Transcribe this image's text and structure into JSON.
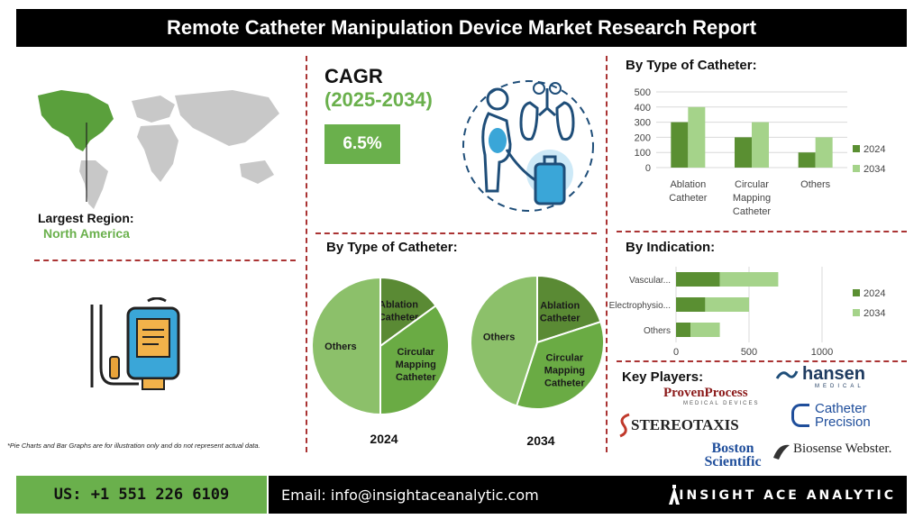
{
  "header": {
    "title": "Remote Catheter Manipulation Device Market Research Report"
  },
  "region": {
    "label": "Largest Region:",
    "value": "North America"
  },
  "cagr": {
    "label": "CAGR",
    "period": "(2025-2034)",
    "value": "6.5%"
  },
  "disclaimer": "*Pie Charts and Bar Graphs are for illustration only and do not represent actual data.",
  "sections": {
    "bar_title": "By Type of Catheter:",
    "pie_title": "By Type of Catheter:",
    "indication_title": "By Indication:",
    "players_title": "Key Players:"
  },
  "colors": {
    "series_2024": "#5a8f32",
    "series_2034": "#a5d38a",
    "pie_dark": "#5a8a34",
    "pie_mid": "#6aab44",
    "pie_light": "#8cc06a",
    "cagr_box": "#6ab04c"
  },
  "chart_data": [
    {
      "type": "bar",
      "title": "By Type of Catheter:",
      "categories": [
        "Ablation Catheter",
        "Circular Mapping Catheter",
        "Others"
      ],
      "category_lines": [
        [
          "Ablation",
          "Catheter"
        ],
        [
          "Circular",
          "Mapping",
          "Catheter"
        ],
        [
          "Others"
        ]
      ],
      "series": [
        {
          "name": "2024",
          "values": [
            300,
            200,
            100
          ]
        },
        {
          "name": "2034",
          "values": [
            400,
            300,
            200
          ]
        }
      ],
      "ylim": [
        0,
        500
      ],
      "yticks": [
        "0",
        "100",
        "200",
        "300",
        "400",
        "500"
      ],
      "legend": "right",
      "grid": true
    },
    {
      "type": "pie",
      "title": "By Type of Catheter:",
      "label": "2024",
      "slices": [
        {
          "name": "Ablation Catheter",
          "lines": [
            "Ablation",
            "Catheter"
          ],
          "value": 15
        },
        {
          "name": "Circular Mapping Catheter",
          "lines": [
            "Circular",
            "Mapping",
            "Catheter"
          ],
          "value": 35
        },
        {
          "name": "Others",
          "lines": [
            "Others"
          ],
          "value": 50
        }
      ]
    },
    {
      "type": "pie",
      "title": "By Type of Catheter:",
      "label": "2034",
      "slices": [
        {
          "name": "Ablation Catheter",
          "lines": [
            "Ablation",
            "Catheter"
          ],
          "value": 20
        },
        {
          "name": "Circular Mapping Catheter",
          "lines": [
            "Circular",
            "Mapping",
            "Catheter"
          ],
          "value": 35
        },
        {
          "name": "Others",
          "lines": [
            "Others"
          ],
          "value": 45
        }
      ]
    },
    {
      "type": "bar",
      "orientation": "horizontal",
      "title": "By Indication:",
      "categories": [
        "Vascular...",
        "Electrophysio...",
        "Others"
      ],
      "series": [
        {
          "name": "2024",
          "values": [
            300,
            200,
            100
          ]
        },
        {
          "name": "2034",
          "values": [
            400,
            300,
            200
          ]
        }
      ],
      "xlim": [
        0,
        1000
      ],
      "xticks": [
        "0",
        "500",
        "1000"
      ],
      "stacked": true,
      "legend": "right",
      "grid": true
    }
  ],
  "players": {
    "hansen": {
      "name": "hansen",
      "sub": "MEDICAL"
    },
    "proven": {
      "name": "ProvenProcess",
      "sub": "MEDICAL DEVICES"
    },
    "stereotaxis": {
      "name": "STEREOTAXIS"
    },
    "catheter": {
      "line1": "Catheter",
      "line2": "Precision"
    },
    "boston": {
      "line1": "Boston",
      "line2": "Scientific"
    },
    "biosense": {
      "name": "Biosense Webster."
    }
  },
  "footer": {
    "phone": "US: +1 551 226 6109",
    "email": "Email: info@insightaceanalytic.com",
    "brand": "INSIGHT ACE ANALYTIC"
  }
}
